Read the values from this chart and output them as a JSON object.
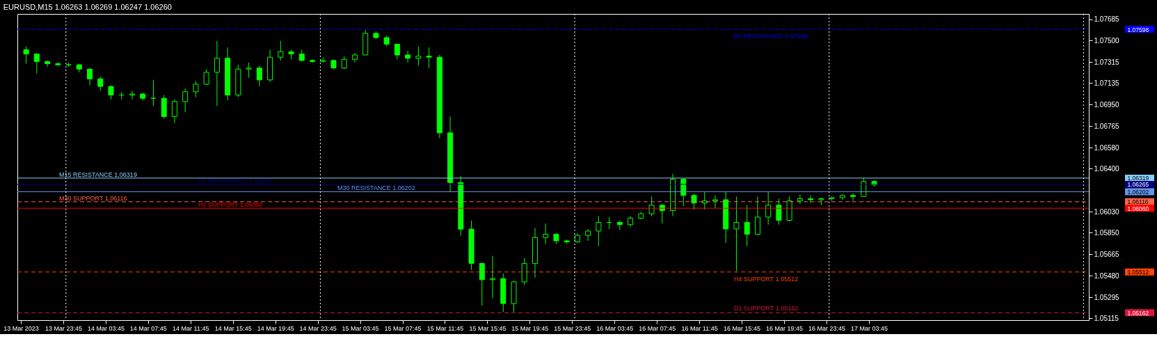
{
  "chart_data": {
    "type": "candlestick",
    "title": "EURUSD,M15  1.06263 1.06269 1.06247 1.06260",
    "color": "#00ff00",
    "grid": false,
    "x": [
      "2023-03-13T20:15",
      "2023-03-13T21:15",
      "2023-03-13T22:15",
      "2023-03-13T23:15",
      "2023-03-14T00:15",
      "2023-03-14T01:15",
      "2023-03-14T02:15",
      "2023-03-14T03:15",
      "2023-03-14T04:15",
      "2023-03-14T05:15",
      "2023-03-14T06:15",
      "2023-03-14T07:15",
      "2023-03-14T08:15",
      "2023-03-14T09:15",
      "2023-03-14T10:15",
      "2023-03-14T11:15",
      "2023-03-14T12:15",
      "2023-03-14T13:15",
      "2023-03-14T14:15",
      "2023-03-14T15:15",
      "2023-03-14T16:15",
      "2023-03-14T17:15",
      "2023-03-14T18:15",
      "2023-03-14T19:15",
      "2023-03-14T20:15",
      "2023-03-14T21:15",
      "2023-03-14T22:15",
      "2023-03-14T23:15",
      "2023-03-15T00:15",
      "2023-03-15T01:15",
      "2023-03-15T02:15",
      "2023-03-15T03:15",
      "2023-03-15T04:15",
      "2023-03-15T05:15",
      "2023-03-15T06:15",
      "2023-03-15T07:15",
      "2023-03-15T08:15",
      "2023-03-15T09:15",
      "2023-03-15T10:15",
      "2023-03-15T11:15",
      "2023-03-15T12:15",
      "2023-03-15T13:15",
      "2023-03-15T14:15",
      "2023-03-15T15:15",
      "2023-03-15T16:15",
      "2023-03-15T17:15",
      "2023-03-15T18:15",
      "2023-03-15T19:15",
      "2023-03-15T20:15",
      "2023-03-15T21:15",
      "2023-03-15T22:15",
      "2023-03-15T23:15",
      "2023-03-16T00:15",
      "2023-03-16T01:15",
      "2023-03-16T02:15",
      "2023-03-16T03:15",
      "2023-03-16T04:15",
      "2023-03-16T05:15",
      "2023-03-16T06:15",
      "2023-03-16T07:15",
      "2023-03-16T08:15",
      "2023-03-16T09:15",
      "2023-03-16T10:15",
      "2023-03-16T11:15",
      "2023-03-16T12:15",
      "2023-03-16T13:15",
      "2023-03-16T14:15",
      "2023-03-16T15:15",
      "2023-03-16T16:15",
      "2023-03-16T17:15",
      "2023-03-16T18:15",
      "2023-03-16T19:15",
      "2023-03-16T20:15",
      "2023-03-16T21:15",
      "2023-03-16T22:15",
      "2023-03-16T23:15",
      "2023-03-17T00:15",
      "2023-03-17T01:15",
      "2023-03-17T02:15",
      "2023-03-17T03:15",
      "2023-03-17T04:15"
    ],
    "ohlc": [
      [
        1.07423,
        1.07451,
        1.07303,
        1.07386
      ],
      [
        1.07386,
        1.07386,
        1.07219,
        1.07321
      ],
      [
        1.07321,
        1.0733,
        1.07275,
        1.07302
      ],
      [
        1.07302,
        1.07312,
        1.07284,
        1.07293
      ],
      [
        1.07293,
        1.07312,
        1.07275,
        1.07293
      ],
      [
        1.07293,
        1.07302,
        1.07228,
        1.07256
      ],
      [
        1.07256,
        1.07265,
        1.07117,
        1.07172
      ],
      [
        1.07172,
        1.07191,
        1.0707,
        1.07107
      ],
      [
        1.07107,
        1.07117,
        1.06996,
        1.07033
      ],
      [
        1.07033,
        1.07061,
        1.06996,
        1.07033
      ],
      [
        1.07033,
        1.0707,
        1.06996,
        1.07042
      ],
      [
        1.07042,
        1.07052,
        1.06987,
        1.07005
      ],
      [
        1.07005,
        1.07163,
        1.0694,
        1.07005
      ],
      [
        1.07005,
        1.07033,
        1.06829,
        1.06848
      ],
      [
        1.06848,
        1.06996,
        1.06792,
        1.06977
      ],
      [
        1.06977,
        1.07089,
        1.06885,
        1.07061
      ],
      [
        1.07061,
        1.07154,
        1.07015,
        1.07126
      ],
      [
        1.07126,
        1.07256,
        1.07117,
        1.07228
      ],
      [
        1.07228,
        1.07498,
        1.0694,
        1.07349
      ],
      [
        1.07349,
        1.07442,
        1.06987,
        1.07033
      ],
      [
        1.07033,
        1.07293,
        1.07015,
        1.07256
      ],
      [
        1.07256,
        1.07312,
        1.07182,
        1.07265
      ],
      [
        1.07265,
        1.07284,
        1.07107,
        1.07163
      ],
      [
        1.07163,
        1.07423,
        1.07145,
        1.07358
      ],
      [
        1.07358,
        1.07498,
        1.0733,
        1.07405
      ],
      [
        1.07405,
        1.07423,
        1.0734,
        1.07386
      ],
      [
        1.07386,
        1.07423,
        1.07321,
        1.0733
      ],
      [
        1.0733,
        1.0734,
        1.07312,
        1.07321
      ],
      [
        1.07321,
        1.07358,
        1.07312,
        1.0733
      ],
      [
        1.0733,
        1.0734,
        1.07256,
        1.07265
      ],
      [
        1.07265,
        1.07367,
        1.07256,
        1.0734
      ],
      [
        1.0734,
        1.07395,
        1.07312,
        1.07377
      ],
      [
        1.07377,
        1.07594,
        1.07377,
        1.07563
      ],
      [
        1.07563,
        1.07581,
        1.07516,
        1.07526
      ],
      [
        1.07526,
        1.07544,
        1.07451,
        1.0747
      ],
      [
        1.0747,
        1.0747,
        1.0734,
        1.07377
      ],
      [
        1.07377,
        1.07414,
        1.07312,
        1.07349
      ],
      [
        1.07349,
        1.07451,
        1.07284,
        1.07367
      ],
      [
        1.07367,
        1.07442,
        1.07265,
        1.07358
      ],
      [
        1.07358,
        1.07377,
        1.06662,
        1.06708
      ],
      [
        1.06708,
        1.06847,
        1.06198,
        1.06281
      ],
      [
        1.06281,
        1.06337,
        1.05825,
        1.0588
      ],
      [
        1.0588,
        1.05955,
        1.0553,
        1.05586
      ],
      [
        1.05586,
        1.05586,
        1.05222,
        1.05446
      ],
      [
        1.05446,
        1.0565,
        1.05287,
        1.05455
      ],
      [
        1.05455,
        1.05501,
        1.05167,
        1.05241
      ],
      [
        1.05241,
        1.05437,
        1.05167,
        1.05427
      ],
      [
        1.05427,
        1.05632,
        1.05399,
        1.05585
      ],
      [
        1.05585,
        1.0589,
        1.05464,
        1.05808
      ],
      [
        1.05808,
        1.05929,
        1.05752,
        1.05836
      ],
      [
        1.05836,
        1.05845,
        1.05752,
        1.0578
      ],
      [
        1.0578,
        1.05789,
        1.05752,
        1.05771
      ],
      [
        1.05771,
        1.05845,
        1.05762,
        1.05827
      ],
      [
        1.05827,
        1.05882,
        1.0578,
        1.05864
      ],
      [
        1.05864,
        1.05993,
        1.05734,
        1.05938
      ],
      [
        1.05938,
        1.05984,
        1.05882,
        1.05938
      ],
      [
        1.05938,
        1.05956,
        1.05873,
        1.05919
      ],
      [
        1.05919,
        1.05993,
        1.05901,
        1.05975
      ],
      [
        1.05975,
        1.0603,
        1.05966,
        1.06012
      ],
      [
        1.06012,
        1.06161,
        1.05993,
        1.06086
      ],
      [
        1.06086,
        1.06096,
        1.05929,
        1.0604
      ],
      [
        1.0604,
        1.06356,
        1.05993,
        1.06309
      ],
      [
        1.06309,
        1.06318,
        1.06077,
        1.0617
      ],
      [
        1.0617,
        1.06188,
        1.06049,
        1.06105
      ],
      [
        1.06105,
        1.06198,
        1.06049,
        1.06123
      ],
      [
        1.06123,
        1.0617,
        1.06059,
        1.06133
      ],
      [
        1.06133,
        1.06198,
        1.05761,
        1.05882
      ],
      [
        1.05882,
        1.06161,
        1.0552,
        1.05938
      ],
      [
        1.05938,
        1.06086,
        1.05734,
        1.05836
      ],
      [
        1.05836,
        1.06161,
        1.05827,
        1.05984
      ],
      [
        1.05984,
        1.06198,
        1.05919,
        1.06086
      ],
      [
        1.06086,
        1.06142,
        1.05919,
        1.05956
      ],
      [
        1.05956,
        1.06161,
        1.05947,
        1.06123
      ],
      [
        1.06123,
        1.06179,
        1.06096,
        1.06142
      ],
      [
        1.06142,
        1.0617,
        1.06105,
        1.06133
      ],
      [
        1.06133,
        1.06151,
        1.06086,
        1.06142
      ],
      [
        1.06142,
        1.06161,
        1.06123,
        1.06151
      ],
      [
        1.06151,
        1.06179,
        1.06133,
        1.0617
      ],
      [
        1.0617,
        1.06188,
        1.06123,
        1.06161
      ],
      [
        1.06161,
        1.06318,
        1.06161,
        1.0629
      ],
      [
        1.0629,
        1.06299,
        1.06247,
        1.0626
      ]
    ],
    "xlim": [
      "2023-03-13T19:45",
      "2023-03-18T00:10"
    ],
    "xticks": [
      {
        "value": "2023-03-13T19:45",
        "label": "13 Mar 2023"
      },
      {
        "value": "2023-03-13T23:45",
        "label": "13 Mar 23:45"
      },
      {
        "value": "2023-03-14T03:45",
        "label": "14 Mar 03:45"
      },
      {
        "value": "2023-03-14T07:45",
        "label": "14 Mar 07:45"
      },
      {
        "value": "2023-03-14T11:45",
        "label": "14 Mar 11:45"
      },
      {
        "value": "2023-03-14T15:45",
        "label": "14 Mar 15:45"
      },
      {
        "value": "2023-03-14T19:45",
        "label": "14 Mar 19:45"
      },
      {
        "value": "2023-03-14T23:45",
        "label": "14 Mar 23:45"
      },
      {
        "value": "2023-03-15T03:45",
        "label": "15 Mar 03:45"
      },
      {
        "value": "2023-03-15T07:45",
        "label": "15 Mar 07:45"
      },
      {
        "value": "2023-03-15T11:45",
        "label": "15 Mar 11:45"
      },
      {
        "value": "2023-03-15T15:45",
        "label": "15 Mar 15:45"
      },
      {
        "value": "2023-03-15T19:45",
        "label": "15 Mar 19:45"
      },
      {
        "value": "2023-03-15T23:45",
        "label": "15 Mar 23:45"
      },
      {
        "value": "2023-03-16T03:45",
        "label": "16 Mar 03:45"
      },
      {
        "value": "2023-03-16T07:45",
        "label": "16 Mar 07:45"
      },
      {
        "value": "2023-03-16T11:45",
        "label": "16 Mar 11:45"
      },
      {
        "value": "2023-03-16T15:45",
        "label": "16 Mar 15:45"
      },
      {
        "value": "2023-03-16T19:45",
        "label": "16 Mar 19:45"
      },
      {
        "value": "2023-03-16T23:45",
        "label": "16 Mar 23:45"
      },
      {
        "value": "2023-03-17T03:45",
        "label": "17 Mar 03:45"
      }
    ],
    "ylim": [
      1.05098,
      1.0773
    ],
    "yticks": [
      {
        "value": 1.05115,
        "label": "1.05115"
      },
      {
        "value": 1.05295,
        "label": "1.05295"
      },
      {
        "value": 1.0548,
        "label": "1.05480"
      },
      {
        "value": 1.05665,
        "label": "1.05665"
      },
      {
        "value": 1.0585,
        "label": "1.05850"
      },
      {
        "value": 1.0603,
        "label": "1.06030"
      },
      {
        "value": 1.064,
        "label": "1.06400"
      },
      {
        "value": 1.0658,
        "label": "1.06580"
      },
      {
        "value": 1.06765,
        "label": "1.06765"
      },
      {
        "value": 1.0695,
        "label": "1.06950"
      },
      {
        "value": 1.07135,
        "label": "1.07135"
      },
      {
        "value": 1.07315,
        "label": "1.07315"
      },
      {
        "value": 1.075,
        "label": "1.07500"
      },
      {
        "value": 1.07685,
        "label": "1.07685"
      }
    ],
    "y2lim": [
      1.05098,
      1.0773
    ],
    "y2ticks": [
      {
        "value": 1.07598,
        "label": "1.07598"
      },
      {
        "value": 1.06319,
        "label": "1.06319"
      },
      {
        "value": 1.06265,
        "label": "1.06265"
      },
      {
        "value": 1.06202,
        "label": "1.06202"
      },
      {
        "value": 1.06116,
        "label": "1.06116"
      },
      {
        "value": 1.0606,
        "label": "1.06060"
      },
      {
        "value": 1.05512,
        "label": "1.05512"
      },
      {
        "value": 1.05162,
        "label": "1.05162"
      }
    ],
    "ref_lines": [
      {
        "axis": "y",
        "value": 1.07598,
        "label": "D1 RESISTANCE 1.07598",
        "color": "#0000ff",
        "line_style": "dashed"
      },
      {
        "axis": "y",
        "value": 1.06319,
        "label": "M15 RESISTANCE 1.06319",
        "color": "#87cefa",
        "line_style": "solid"
      },
      {
        "axis": "y",
        "value": 1.06265,
        "label": "H1 RESISTANCE 1.06265",
        "color": "#000080",
        "line_style": "solid"
      },
      {
        "axis": "y",
        "value": 1.06202,
        "label": "M30 RESISTANCE 1.06202",
        "color": "#6495ed",
        "line_style": "solid"
      },
      {
        "axis": "y",
        "value": 1.06116,
        "label": "M30 SUPPORT 1.06116",
        "color": "#ff6347",
        "line_style": "dashed"
      },
      {
        "axis": "y",
        "value": 1.0606,
        "label": "H1 SUPPORT 1.06060",
        "color": "#ff0000",
        "line_style": "solid"
      },
      {
        "axis": "y",
        "value": 1.05512,
        "label": "H4 SUPPORT 1.05512",
        "color": "#ff4500",
        "line_style": "dashed"
      },
      {
        "axis": "y",
        "value": 1.05162,
        "label": "D1 SUPPORT 1.05162",
        "color": "#dc143c",
        "line_style": "dashed"
      },
      {
        "axis": "x",
        "value": "2023-03-14T00:00",
        "color": "#ffffff",
        "line_style": "dotted"
      },
      {
        "axis": "x",
        "value": "2023-03-15T00:00",
        "color": "#ffffff",
        "line_style": "dotted"
      },
      {
        "axis": "x",
        "value": "2023-03-16T00:00",
        "color": "#ffffff",
        "line_style": "dotted"
      },
      {
        "axis": "x",
        "value": "2023-03-17T00:00",
        "color": "#ffffff",
        "line_style": "dotted"
      },
      {
        "axis": "x",
        "value": "2023-03-18T00:00",
        "color": "#ffffff",
        "line_style": "dotted"
      }
    ]
  }
}
